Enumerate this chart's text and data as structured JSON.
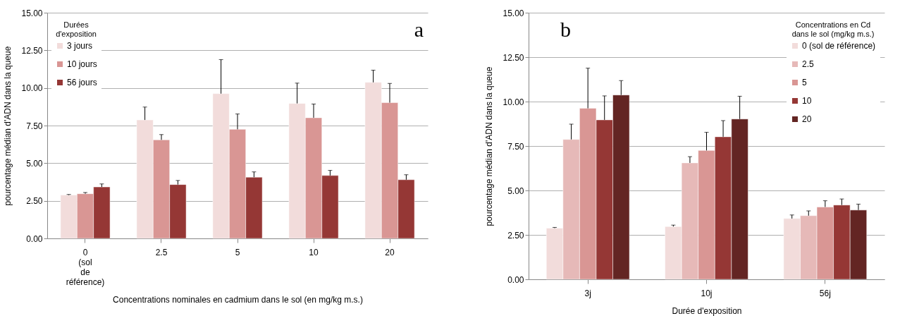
{
  "chart_data": [
    {
      "type": "bar",
      "categories": [
        "0 (sol de référence)",
        "2.5",
        "5",
        "10",
        "20"
      ],
      "xlabel": "Concentrations nominales en cadmium dans le sol (en mg/kg m.s.)",
      "ylabel": "pourcentage médian d'ADN dans la queue",
      "legend_title": "Durées d'exposition",
      "legend": "top left",
      "grid": "y",
      "ylim": [
        0,
        15
      ],
      "yticks": [
        {
          "value": 0,
          "label": "0.00"
        },
        {
          "value": 2.5,
          "label": "2.50"
        },
        {
          "value": 5,
          "label": "5.00"
        },
        {
          "value": 7.5,
          "label": "7.50"
        },
        {
          "value": 10,
          "label": "10.00"
        },
        {
          "value": 12.5,
          "label": "12.50"
        },
        {
          "value": 15,
          "label": "15.00"
        }
      ],
      "annotations": [
        "a"
      ],
      "series": [
        {
          "name": "3 jours",
          "color": "#f2dcdb",
          "values": [
            2.88,
            7.87,
            9.62,
            8.97,
            10.37
          ],
          "errors": [
            [
              2.88,
              2.92
            ],
            [
              7.87,
              8.73
            ],
            [
              9.62,
              11.88
            ],
            [
              8.97,
              10.32
            ],
            [
              10.37,
              11.18
            ]
          ]
        },
        {
          "name": "10 jours",
          "color": "#d99694",
          "values": [
            2.97,
            6.55,
            7.25,
            8.02,
            9.02
          ],
          "errors": [
            [
              2.97,
              3.05
            ],
            [
              6.55,
              6.9
            ],
            [
              7.25,
              8.27
            ],
            [
              8.02,
              8.93
            ],
            [
              9.02,
              10.3
            ]
          ]
        },
        {
          "name": "56 jours",
          "color": "#953735",
          "values": [
            3.42,
            3.58,
            4.07,
            4.18,
            3.9
          ],
          "errors": [
            [
              3.42,
              3.62
            ],
            [
              3.58,
              3.85
            ],
            [
              4.07,
              4.42
            ],
            [
              4.18,
              4.52
            ],
            [
              3.9,
              4.23
            ]
          ]
        }
      ]
    },
    {
      "type": "bar",
      "categories": [
        "3j",
        "10j",
        "56j"
      ],
      "xlabel": "Durée d'exposition",
      "ylabel": "pourcentage médian d'ADN dans la queue",
      "legend_title": "Concentrations en Cd dans le sol (mg/kg m.s.)",
      "legend": "top right",
      "grid": "y",
      "ylim": [
        0,
        15
      ],
      "yticks": [
        {
          "value": 0,
          "label": "0.00"
        },
        {
          "value": 2.5,
          "label": "2.50"
        },
        {
          "value": 5,
          "label": "5.00"
        },
        {
          "value": 7.5,
          "label": "7.50"
        },
        {
          "value": 10,
          "label": "10.00"
        },
        {
          "value": 12.5,
          "label": "12.50"
        },
        {
          "value": 15,
          "label": "15.00"
        }
      ],
      "annotations": [
        "b"
      ],
      "series": [
        {
          "name": "0 (sol de référence)",
          "color": "#f2dcdb",
          "values": [
            2.88,
            2.97,
            3.42
          ],
          "errors": [
            [
              2.88,
              2.92
            ],
            [
              2.97,
              3.05
            ],
            [
              3.42,
              3.62
            ]
          ]
        },
        {
          "name": "2.5",
          "color": "#e6b9b8",
          "values": [
            7.87,
            6.55,
            3.58
          ],
          "errors": [
            [
              7.87,
              8.73
            ],
            [
              6.55,
              6.9
            ],
            [
              3.58,
              3.85
            ]
          ]
        },
        {
          "name": "5",
          "color": "#d99694",
          "values": [
            9.62,
            7.25,
            4.07
          ],
          "errors": [
            [
              9.62,
              11.88
            ],
            [
              7.25,
              8.27
            ],
            [
              4.07,
              4.42
            ]
          ]
        },
        {
          "name": "10",
          "color": "#953735",
          "values": [
            8.97,
            8.02,
            4.18
          ],
          "errors": [
            [
              8.97,
              10.32
            ],
            [
              8.02,
              8.93
            ],
            [
              4.18,
              4.52
            ]
          ]
        },
        {
          "name": "20",
          "color": "#632523",
          "values": [
            10.37,
            9.02,
            3.9
          ],
          "errors": [
            [
              10.37,
              11.18
            ],
            [
              9.02,
              10.3
            ],
            [
              3.9,
              4.23
            ]
          ]
        }
      ]
    }
  ]
}
